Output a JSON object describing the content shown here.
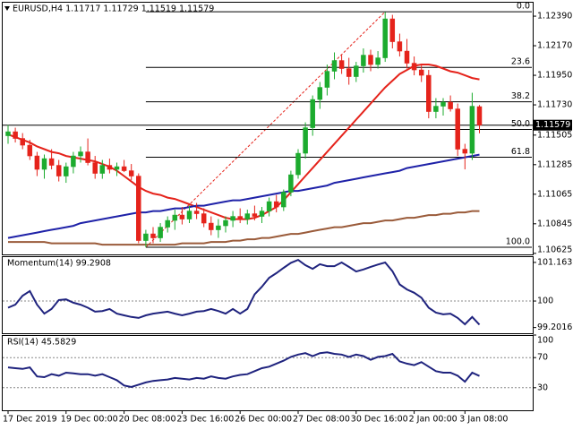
{
  "chart_data": [
    {
      "type": "candlestick",
      "title": "EURUSD,H4  1.11717 1.11729 1.11519 1.11579",
      "categories": [
        "17 Dec 2019",
        null,
        null,
        null,
        null,
        null,
        null,
        null,
        "19 Dec 00:00",
        null,
        null,
        null,
        null,
        null,
        null,
        null,
        "20 Dec 08:00",
        null,
        null,
        null,
        null,
        null,
        null,
        null,
        "23 Dec 16:00",
        null,
        null,
        null,
        null,
        null,
        null,
        null,
        "26 Dec 00:00",
        null,
        null,
        null,
        null,
        null,
        null,
        null,
        "27 Dec 08:00",
        null,
        null,
        null,
        null,
        null,
        null,
        null,
        "30 Dec 16:00",
        null,
        null,
        null,
        null,
        null,
        null,
        null,
        "2 Jan 00:00",
        null,
        null,
        null,
        null,
        null,
        null,
        "3 Jan 08:00",
        null,
        null
      ],
      "open": [
        1.115,
        1.1153,
        1.1148,
        1.1143,
        1.1135,
        1.1125,
        1.1133,
        1.1128,
        1.112,
        1.1127,
        1.1135,
        1.1138,
        1.113,
        1.1122,
        1.1128,
        1.1125,
        1.1127,
        1.1124,
        1.112,
        1.1072,
        1.1077,
        1.1074,
        1.1082,
        1.1087,
        1.1091,
        1.1088,
        1.1094,
        1.1092,
        1.1085,
        1.108,
        1.1083,
        1.1087,
        1.109,
        1.1088,
        1.1092,
        1.109,
        1.1094,
        1.1101,
        1.1097,
        1.1108,
        1.1121,
        1.1137,
        1.1156,
        1.1177,
        1.1186,
        1.1198,
        1.1206,
        1.12,
        1.1194,
        1.1202,
        1.121,
        1.1203,
        1.1208,
        1.1237,
        1.122,
        1.1213,
        1.1204,
        1.1199,
        1.1195,
        1.1168,
        1.1172,
        1.1175,
        1.117,
        1.114,
        1.1137,
        1.11717
      ],
      "high": [
        1.1158,
        1.1156,
        1.1152,
        1.1147,
        1.1138,
        1.1136,
        1.114,
        1.1132,
        1.113,
        1.1138,
        1.1142,
        1.1148,
        1.1135,
        1.1132,
        1.1133,
        1.113,
        1.1132,
        1.1129,
        1.1122,
        1.108,
        1.1082,
        1.1085,
        1.109,
        1.1095,
        1.1097,
        1.1098,
        1.11,
        1.1096,
        1.109,
        1.1088,
        1.109,
        1.1094,
        1.1096,
        1.1095,
        1.1098,
        1.1097,
        1.1104,
        1.1106,
        1.111,
        1.1124,
        1.114,
        1.116,
        1.118,
        1.119,
        1.1203,
        1.1212,
        1.121,
        1.1208,
        1.1205,
        1.1215,
        1.1214,
        1.1213,
        1.1242,
        1.124,
        1.1226,
        1.1222,
        1.1209,
        1.1203,
        1.1199,
        1.1178,
        1.1178,
        1.118,
        1.1174,
        1.1144,
        1.1182,
        1.11729
      ],
      "low": [
        1.1144,
        1.1145,
        1.114,
        1.1132,
        1.112,
        1.1118,
        1.1125,
        1.1116,
        1.1115,
        1.1122,
        1.113,
        1.1128,
        1.1118,
        1.1118,
        1.1122,
        1.112,
        1.1123,
        1.1117,
        1.107,
        1.1067,
        1.107,
        1.1071,
        1.1078,
        1.108,
        1.1084,
        1.1085,
        1.1088,
        1.1082,
        1.1076,
        1.1074,
        1.1078,
        1.1082,
        1.1085,
        1.1084,
        1.1087,
        1.1085,
        1.109,
        1.1093,
        1.1094,
        1.1105,
        1.1118,
        1.1133,
        1.115,
        1.117,
        1.118,
        1.1192,
        1.1196,
        1.1188,
        1.119,
        1.1197,
        1.1198,
        1.12,
        1.1205,
        1.1215,
        1.1209,
        1.12,
        1.1195,
        1.119,
        1.1163,
        1.1163,
        1.1165,
        1.1168,
        1.1135,
        1.1125,
        1.1132,
        1.11519
      ],
      "close": [
        1.1153,
        1.1148,
        1.1143,
        1.1135,
        1.1125,
        1.1133,
        1.1128,
        1.112,
        1.1127,
        1.1135,
        1.1138,
        1.113,
        1.1122,
        1.1128,
        1.1125,
        1.1127,
        1.1124,
        1.112,
        1.1072,
        1.1077,
        1.1074,
        1.1082,
        1.1087,
        1.1091,
        1.1088,
        1.1094,
        1.1092,
        1.1085,
        1.108,
        1.1083,
        1.1087,
        1.109,
        1.1088,
        1.1092,
        1.109,
        1.1094,
        1.1101,
        1.1097,
        1.1108,
        1.1121,
        1.1137,
        1.1156,
        1.1177,
        1.1186,
        1.1198,
        1.1206,
        1.12,
        1.1194,
        1.1202,
        1.121,
        1.1203,
        1.1208,
        1.1237,
        1.122,
        1.1213,
        1.1204,
        1.1199,
        1.1195,
        1.1168,
        1.1172,
        1.1175,
        1.117,
        1.114,
        1.1137,
        1.1172,
        1.11579
      ],
      "up_color": "#1cab2e",
      "down_color": "#e5231b",
      "lines": [
        {
          "color": "#e5231b",
          "values": [
            1.1151,
            1.1149,
            1.1147,
            1.1145,
            1.1142,
            1.114,
            1.1138,
            1.1137,
            1.1135,
            1.1134,
            1.1133,
            1.1132,
            1.1131,
            1.1129,
            1.1127,
            1.1124,
            1.112,
            1.1116,
            1.1112,
            1.1109,
            1.1107,
            1.1106,
            1.1104,
            1.1103,
            1.1101,
            1.1099,
            1.1097,
            1.1095,
            1.1093,
            1.1091,
            1.1089,
            1.1088,
            1.1088,
            1.1088,
            1.1089,
            1.1091,
            1.1094,
            1.1097,
            1.1102,
            1.1108,
            1.1114,
            1.112,
            1.1126,
            1.1132,
            1.1138,
            1.1144,
            1.115,
            1.1156,
            1.1162,
            1.1168,
            1.1174,
            1.118,
            1.1186,
            1.1191,
            1.1196,
            1.1199,
            1.1202,
            1.1203,
            1.1203,
            1.1202,
            1.12,
            1.1198,
            1.1197,
            1.1195,
            1.1193,
            1.1192
          ]
        },
        {
          "color": "#1f22a8",
          "values": [
            1.1074,
            1.1075,
            1.1076,
            1.1077,
            1.1078,
            1.1079,
            1.108,
            1.1081,
            1.1082,
            1.1083,
            1.1085,
            1.1086,
            1.1087,
            1.1088,
            1.1089,
            1.109,
            1.1091,
            1.1092,
            1.1093,
            1.1093,
            1.1094,
            1.1094,
            1.1095,
            1.1096,
            1.1096,
            1.1097,
            1.1098,
            1.1098,
            1.1099,
            1.11,
            1.1101,
            1.1102,
            1.1102,
            1.1103,
            1.1104,
            1.1105,
            1.1106,
            1.1107,
            1.1108,
            1.1109,
            1.1109,
            1.111,
            1.1111,
            1.1112,
            1.1113,
            1.1115,
            1.1116,
            1.1117,
            1.1118,
            1.1119,
            1.112,
            1.1121,
            1.1122,
            1.1123,
            1.1124,
            1.1126,
            1.1127,
            1.1128,
            1.1129,
            1.113,
            1.1131,
            1.1132,
            1.1133,
            1.1134,
            1.1135,
            1.1136
          ]
        },
        {
          "color": "#9a5b3a",
          "values": [
            1.1071,
            1.1071,
            1.1071,
            1.1071,
            1.1071,
            1.1071,
            1.107,
            1.107,
            1.107,
            1.107,
            1.107,
            1.107,
            1.107,
            1.1069,
            1.1069,
            1.1069,
            1.1069,
            1.1069,
            1.1069,
            1.1069,
            1.1069,
            1.1069,
            1.1069,
            1.1069,
            1.107,
            1.107,
            1.107,
            1.107,
            1.1071,
            1.1071,
            1.1071,
            1.1072,
            1.1072,
            1.1073,
            1.1073,
            1.1074,
            1.1074,
            1.1075,
            1.1076,
            1.1077,
            1.1077,
            1.1078,
            1.1079,
            1.108,
            1.1081,
            1.1082,
            1.1082,
            1.1083,
            1.1084,
            1.1085,
            1.1085,
            1.1086,
            1.1087,
            1.1087,
            1.1088,
            1.1089,
            1.1089,
            1.109,
            1.1091,
            1.1091,
            1.1092,
            1.1092,
            1.1093,
            1.1093,
            1.1094,
            1.1094
          ]
        }
      ],
      "fib_color": "#000000",
      "trend_color": "#e5231b",
      "fib_levels": [
        {
          "label": "0.0",
          "value": 1.12423
        },
        {
          "label": "23.6",
          "value": 1.12009
        },
        {
          "label": "38.2",
          "value": 1.11753
        },
        {
          "label": "50.0",
          "value": 1.11547
        },
        {
          "label": "61.8",
          "value": 1.1134
        },
        {
          "label": "100.0",
          "value": 1.1067
        }
      ],
      "last_price": 1.11579,
      "ylim": [
        1.10617,
        1.12497
      ],
      "yticks": [
        {
          "value": 1.1239,
          "label": "1.12390"
        },
        {
          "value": 1.1217,
          "label": "1.12170"
        },
        {
          "value": 1.1195,
          "label": "1.11950"
        },
        {
          "value": 1.1173,
          "label": "1.11730"
        },
        1.11505,
        1.11285,
        1.11065,
        1.10845,
        1.10625
      ]
    },
    {
      "type": "line",
      "title": "Momentum(14) 99.2908",
      "color": "#1f237e",
      "values": [
        99.8,
        99.89,
        100.16,
        100.3,
        99.89,
        99.62,
        99.76,
        100.03,
        100.05,
        99.95,
        99.89,
        99.8,
        99.68,
        99.7,
        99.76,
        99.62,
        99.57,
        99.52,
        99.49,
        99.57,
        99.62,
        99.65,
        99.68,
        99.62,
        99.57,
        99.62,
        99.68,
        99.7,
        99.76,
        99.7,
        99.62,
        99.76,
        99.62,
        99.76,
        100.2,
        100.43,
        100.7,
        100.84,
        101.0,
        101.15,
        101.24,
        101.08,
        100.97,
        101.11,
        101.05,
        101.05,
        101.16,
        101.03,
        100.89,
        100.95,
        101.03,
        101.1,
        101.16,
        100.9,
        100.5,
        100.35,
        100.25,
        100.1,
        99.8,
        99.65,
        99.6,
        99.62,
        99.49,
        99.3,
        99.52,
        99.29
      ],
      "levels": [
        100
      ],
      "ylim": [
        99.03,
        101.35
      ],
      "yticks": [
        101.163,
        100,
        99.2016
      ]
    },
    {
      "type": "line",
      "title": "RSI(14) 45.5829",
      "color": "#1f237e",
      "values": [
        57,
        56,
        55,
        57,
        45,
        44,
        48,
        46,
        50,
        49,
        48,
        48,
        46,
        48,
        44,
        40,
        33,
        31,
        34,
        37,
        39,
        40,
        41,
        43,
        42,
        41,
        43,
        42,
        45,
        43,
        42,
        45,
        47,
        48,
        52,
        56,
        58,
        62,
        66,
        71,
        74,
        76,
        72,
        76,
        77,
        75,
        74,
        71,
        74,
        72,
        67,
        71,
        72,
        75,
        65,
        62,
        60,
        64,
        58,
        52,
        50,
        50,
        46,
        38,
        50,
        45.58
      ],
      "levels": [
        30,
        70
      ],
      "ylim": [
        0,
        100
      ],
      "yticks": [
        100,
        70,
        30
      ]
    }
  ]
}
